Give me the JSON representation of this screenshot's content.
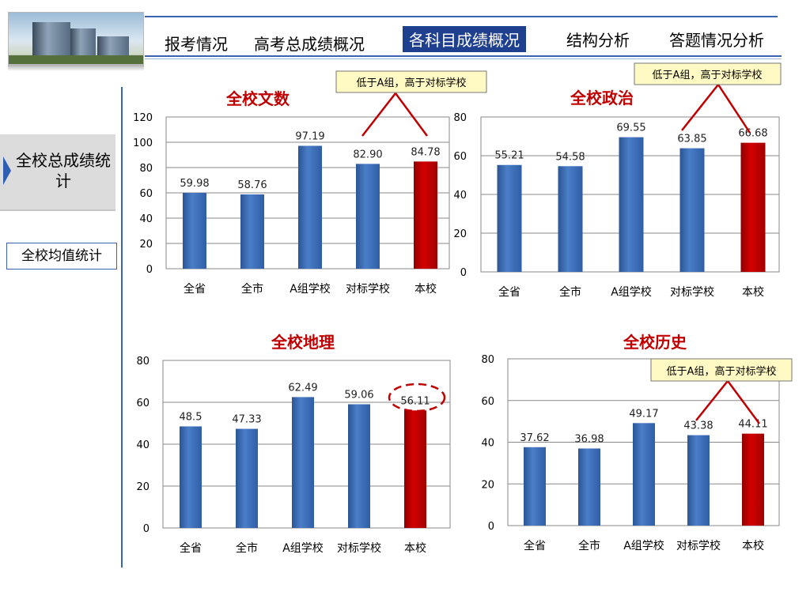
{
  "header": {
    "tabs": [
      {
        "label": "报考情况"
      },
      {
        "label": "高考总成绩概况"
      },
      {
        "label": "各科目成绩概况"
      },
      {
        "label": "结构分析"
      },
      {
        "label": "答题情况分析"
      }
    ],
    "active_tab": 2
  },
  "sidebar": {
    "section_label": "全校总成绩统计",
    "button_label": "全校均值统计"
  },
  "colors": {
    "blue_bar": "#4a7ec8",
    "red_bar": "#d40000",
    "title": "#c00000",
    "accent_line": "#3a63b0",
    "annotation": "#c00000"
  },
  "chart_data": [
    {
      "type": "bar",
      "title": "全校文数",
      "categories": [
        "全省",
        "全市",
        "A组学校",
        "对标学校",
        "本校"
      ],
      "values": [
        59.98,
        58.76,
        97.19,
        82.9,
        84.78
      ],
      "value_labels": [
        "59.98",
        "58.76",
        "97.19",
        "82.90",
        "84.78"
      ],
      "highlight": [
        4
      ],
      "ylim": [
        0,
        120
      ],
      "yticks": [
        "0",
        "20",
        "40",
        "60",
        "80",
        "100",
        "120"
      ],
      "grid": true,
      "annotation": "低于A组，高于对标学校"
    },
    {
      "type": "bar",
      "title": "全校政治",
      "categories": [
        "全省",
        "全市",
        "A组学校",
        "对标学校",
        "本校"
      ],
      "values": [
        55.21,
        54.58,
        69.55,
        63.85,
        66.68
      ],
      "value_labels": [
        "55.21",
        "54.58",
        "69.55",
        "63.85",
        "66.68"
      ],
      "highlight": [
        4
      ],
      "ylim": [
        0,
        80
      ],
      "yticks": [
        "0",
        "20",
        "40",
        "60",
        "80"
      ],
      "grid": true,
      "annotation": "低于A组，高于对标学校"
    },
    {
      "type": "bar",
      "title": "全校地理",
      "categories": [
        "全省",
        "全市",
        "A组学校",
        "对标学校",
        "本校"
      ],
      "values": [
        48.5,
        47.33,
        62.49,
        59.06,
        56.11
      ],
      "value_labels": [
        "48.5",
        "47.33",
        "62.49",
        "59.06",
        "56.11"
      ],
      "highlight": [
        4
      ],
      "ylim": [
        0,
        80
      ],
      "yticks": [
        "0",
        "20",
        "40",
        "60",
        "80"
      ],
      "grid": true,
      "annotation": ""
    },
    {
      "type": "bar",
      "title": "全校历史",
      "categories": [
        "全省",
        "全市",
        "A组学校",
        "对标学校",
        "本校"
      ],
      "values": [
        37.62,
        36.98,
        49.17,
        43.38,
        44.11
      ],
      "value_labels": [
        "37.62",
        "36.98",
        "49.17",
        "43.38",
        "44.11"
      ],
      "highlight": [
        4
      ],
      "ylim": [
        0,
        80
      ],
      "yticks": [
        "0",
        "20",
        "40",
        "60",
        "80"
      ],
      "grid": true,
      "annotation": "低于A组，高于对标学校"
    }
  ]
}
